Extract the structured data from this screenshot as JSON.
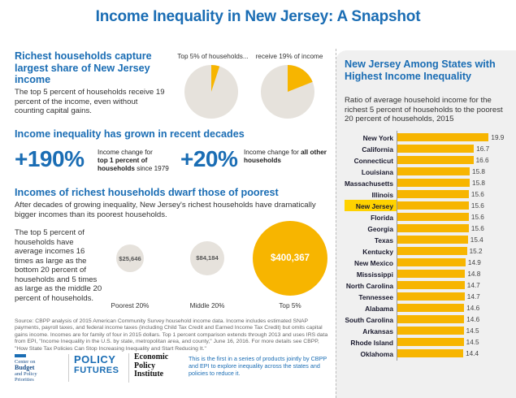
{
  "title": "Income Inequality in New Jersey: A Snapshot",
  "section1": {
    "heading": "Richest households capture largest share of New Jersey income",
    "body": "The top 5 percent of households receive 19 percent of the income, even without counting capital gains.",
    "pie1_label": "Top 5% of households...",
    "pie2_label": "receive 19% of income",
    "pie1_share": 0.05,
    "pie2_share": 0.19
  },
  "section2": {
    "heading": "Income inequality has grown in recent decades",
    "stat1_value": "+190%",
    "stat1_desc_a": "Income change for",
    "stat1_desc_b": "top 1 percent of households",
    "stat1_desc_c": " since 1979",
    "stat2_value": "+20%",
    "stat2_desc_a": "Income change for ",
    "stat2_desc_b": "all other households"
  },
  "section3": {
    "heading": "Incomes of richest households dwarf those of poorest",
    "body": "After decades of growing inequality, New Jersey's richest households have dramatically bigger incomes than its poorest households.",
    "side_text": "The top 5 percent of households have average incomes 16 times as large as the bottom 20 percent of households and 5 times as large as the middle 20 percent of households.",
    "bubbles": [
      {
        "value": "$25,646",
        "amount": 25646,
        "label": "Poorest 20%"
      },
      {
        "value": "$84,184",
        "amount": 84184,
        "label": "Middle 20%"
      },
      {
        "value": "$400,367",
        "amount": 400367,
        "label": "Top 5%"
      }
    ]
  },
  "source": "Source: CBPP analysis of 2015 American Community Survey household income data. Income includes estimated SNAP payments, payroll taxes, and federal income taxes (including Child Tax Credit and Earned Income Tax Credit) but omits capital gains income. Incomes are for family of four in 2015 dollars. Top 1 percent comparison extends through 2013 and uses IRS data from EPI, \"Income Inequality in the U.S. by state, metropolitan area, and county,\" June 16, 2016. For more details see CBPP, \"How State Tax Policies Can Stop Increasing Inequality and Start Reducing It.\"",
  "footer": {
    "cbpp_logo_l1": "Center on",
    "cbpp_logo_l2": "Budget",
    "cbpp_logo_l3": "and Policy",
    "cbpp_logo_l4": "Priorities",
    "pf_logo_l1": "POLICY",
    "pf_logo_l2": "FUTURES",
    "epi_logo_l1": "Economic",
    "epi_logo_l2": "Policy",
    "epi_logo_l3": "Institute",
    "note": "This is the first in a series of products jointly by CBPP and EPI to explore inequality across the states and policies to reduce it."
  },
  "panel": {
    "heading": "New Jersey Among States with Highest Income Inequality",
    "subheading": "Ratio of average household income for the richest 5 percent of households to the poorest 20 percent of households, 2015"
  },
  "colors": {
    "brand_blue": "#1a6db4",
    "bar_gold": "#f7b500",
    "pie_grey": "#e6e2dc",
    "highlight": "#ffd200"
  },
  "chart_data": {
    "type": "bar",
    "orientation": "horizontal",
    "title": "New Jersey Among States with Highest Income Inequality",
    "subtitle": "Ratio of average household income for the richest 5 percent of households to the poorest 20 percent of households, 2015",
    "categories": [
      "New York",
      "California",
      "Connecticut",
      "Louisiana",
      "Massachusetts",
      "Illinois",
      "New Jersey",
      "Florida",
      "Georgia",
      "Texas",
      "Kentucky",
      "New Mexico",
      "Mississippi",
      "North Carolina",
      "Tennessee",
      "Alabama",
      "South Carolina",
      "Arkansas",
      "Rhode Island",
      "Oklahoma"
    ],
    "values": [
      19.9,
      16.7,
      16.6,
      15.8,
      15.8,
      15.6,
      15.6,
      15.6,
      15.6,
      15.4,
      15.2,
      14.9,
      14.8,
      14.7,
      14.7,
      14.6,
      14.6,
      14.5,
      14.5,
      14.4
    ],
    "value_labels": [
      "19.9",
      "16.7",
      "16.6",
      "15.8",
      "15.8",
      "15.6",
      "15.6",
      "15.6",
      "15.6",
      "15.4",
      "15.2",
      "14.9",
      "14.8",
      "14.7",
      "14.7",
      "14.6",
      "14.6",
      "14.5",
      "14.5",
      "14.4"
    ],
    "highlight": "New Jersey",
    "xlim": [
      0,
      20
    ],
    "grid": false,
    "legend": "none"
  }
}
